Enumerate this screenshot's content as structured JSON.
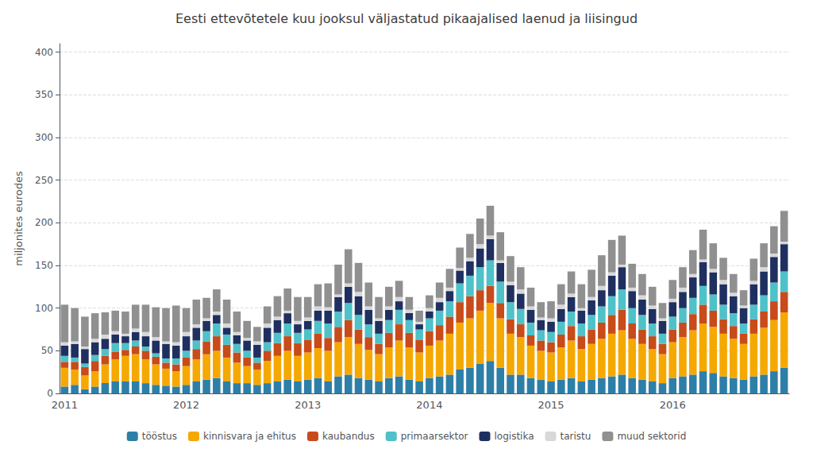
{
  "chart_data": {
    "type": "bar",
    "title": "Eesti ettevõtetele kuu jooksul väljastatud pikaajalised laenud ja liisingud",
    "ylabel": "miljonites eurodes",
    "stacked": true,
    "grid": true,
    "legend": "bottom",
    "ylim": [
      0,
      410
    ],
    "yticks": [
      0,
      50,
      100,
      150,
      200,
      250,
      300,
      350,
      400
    ],
    "categories": [
      "2011",
      null,
      null,
      null,
      null,
      null,
      null,
      null,
      null,
      null,
      null,
      null,
      "2012",
      null,
      null,
      null,
      null,
      null,
      null,
      null,
      null,
      null,
      null,
      null,
      "2013",
      null,
      null,
      null,
      null,
      null,
      null,
      null,
      null,
      null,
      null,
      null,
      "2014",
      null,
      null,
      null,
      null,
      null,
      null,
      null,
      null,
      null,
      null,
      null,
      "2015",
      null,
      null,
      null,
      null,
      null,
      null,
      null,
      null,
      null,
      null,
      null,
      "2016",
      null,
      null,
      null,
      null,
      null,
      null,
      null,
      null,
      null,
      null,
      null
    ],
    "series": [
      {
        "name": "tööstus",
        "color": "#2E7FA8",
        "values": [
          8,
          10,
          5,
          8,
          12,
          14,
          14,
          14,
          12,
          10,
          9,
          8,
          10,
          14,
          16,
          18,
          14,
          12,
          12,
          10,
          12,
          14,
          16,
          14,
          16,
          18,
          14,
          20,
          22,
          18,
          16,
          14,
          18,
          20,
          16,
          14,
          18,
          20,
          22,
          28,
          30,
          35,
          38,
          30,
          22,
          22,
          18,
          16,
          14,
          16,
          18,
          14,
          16,
          18,
          20,
          22,
          18,
          16,
          14,
          12,
          18,
          20,
          22,
          26,
          24,
          20,
          18,
          16,
          20,
          22,
          26,
          30
        ]
      },
      {
        "name": "kinnisvara ja ehitus",
        "color": "#F5A800",
        "values": [
          22,
          18,
          16,
          18,
          22,
          26,
          30,
          32,
          28,
          24,
          20,
          18,
          22,
          26,
          30,
          32,
          28,
          24,
          20,
          18,
          26,
          30,
          34,
          30,
          32,
          35,
          36,
          40,
          44,
          40,
          35,
          32,
          36,
          42,
          38,
          34,
          38,
          42,
          48,
          55,
          58,
          62,
          68,
          58,
          48,
          44,
          38,
          34,
          34,
          38,
          44,
          38,
          42,
          46,
          50,
          52,
          46,
          42,
          38,
          34,
          42,
          46,
          52,
          56,
          54,
          50,
          46,
          42,
          50,
          55,
          60,
          65
        ]
      },
      {
        "name": "kaubandus",
        "color": "#C84B1A",
        "values": [
          7,
          9,
          10,
          12,
          10,
          9,
          7,
          9,
          10,
          9,
          7,
          8,
          10,
          12,
          15,
          17,
          15,
          12,
          10,
          8,
          12,
          15,
          17,
          15,
          15,
          17,
          15,
          18,
          20,
          17,
          15,
          12,
          17,
          19,
          17,
          15,
          17,
          18,
          20,
          24,
          26,
          24,
          20,
          18,
          17,
          15,
          12,
          12,
          12,
          15,
          17,
          15,
          17,
          19,
          22,
          24,
          18,
          17,
          15,
          12,
          15,
          17,
          19,
          22,
          19,
          17,
          15,
          12,
          17,
          19,
          22,
          24
        ]
      },
      {
        "name": "primaarsektor",
        "color": "#4FC1C8",
        "values": [
          7,
          5,
          4,
          7,
          8,
          10,
          8,
          7,
          5,
          4,
          5,
          7,
          8,
          10,
          12,
          15,
          12,
          10,
          8,
          6,
          10,
          12,
          15,
          12,
          12,
          15,
          17,
          18,
          20,
          17,
          15,
          12,
          15,
          17,
          15,
          12,
          15,
          17,
          18,
          22,
          24,
          27,
          30,
          25,
          20,
          18,
          15,
          12,
          12,
          15,
          17,
          15,
          17,
          19,
          22,
          24,
          18,
          17,
          15,
          12,
          15,
          17,
          19,
          22,
          19,
          17,
          15,
          12,
          17,
          19,
          22,
          24
        ]
      },
      {
        "name": "logistika",
        "color": "#1F3060",
        "values": [
          12,
          16,
          17,
          15,
          12,
          10,
          8,
          10,
          12,
          15,
          17,
          15,
          17,
          15,
          12,
          10,
          8,
          10,
          12,
          15,
          17,
          15,
          12,
          10,
          10,
          12,
          15,
          17,
          19,
          22,
          17,
          15,
          12,
          10,
          8,
          6,
          8,
          10,
          12,
          15,
          17,
          22,
          25,
          22,
          20,
          18,
          15,
          12,
          12,
          15,
          17,
          15,
          17,
          19,
          24,
          26,
          20,
          18,
          17,
          15,
          17,
          19,
          24,
          28,
          26,
          24,
          20,
          18,
          24,
          28,
          30,
          32
        ]
      },
      {
        "name": "taristu",
        "color": "#D8D8D8",
        "values": [
          4,
          3,
          3,
          4,
          5,
          4,
          3,
          4,
          5,
          4,
          3,
          4,
          5,
          4,
          3,
          4,
          5,
          4,
          3,
          4,
          5,
          4,
          3,
          4,
          4,
          5,
          4,
          3,
          4,
          5,
          4,
          3,
          4,
          5,
          4,
          3,
          4,
          5,
          4,
          3,
          4,
          5,
          4,
          3,
          4,
          5,
          4,
          3,
          4,
          5,
          4,
          3,
          4,
          5,
          4,
          3,
          4,
          5,
          4,
          3,
          4,
          5,
          4,
          3,
          4,
          5,
          4,
          3,
          4,
          5,
          4,
          3
        ]
      },
      {
        "name": "muud sektorid",
        "color": "#909090",
        "values": [
          44,
          39,
          35,
          30,
          26,
          24,
          26,
          28,
          32,
          35,
          39,
          43,
          28,
          29,
          24,
          26,
          28,
          24,
          20,
          17,
          20,
          24,
          26,
          28,
          24,
          26,
          28,
          35,
          40,
          34,
          28,
          25,
          23,
          19,
          15,
          13,
          15,
          18,
          22,
          24,
          28,
          30,
          35,
          33,
          30,
          26,
          22,
          18,
          20,
          24,
          26,
          28,
          32,
          36,
          38,
          34,
          28,
          25,
          22,
          18,
          22,
          24,
          28,
          35,
          30,
          26,
          22,
          18,
          26,
          28,
          32,
          36
        ]
      }
    ]
  }
}
